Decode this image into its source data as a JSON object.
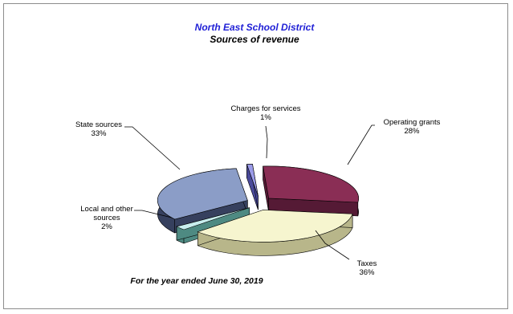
{
  "chart_data": {
    "type": "pie",
    "title": "North East School District",
    "subtitle": "Sources of revenue",
    "footnote": "For the year ended June 30, 2019",
    "title_color": "#1f1fd6",
    "slices": [
      {
        "label": "Charges for services",
        "value_label": "1%",
        "value": 1,
        "color_top": "#9b9be8",
        "color_side": "#4a4a9a"
      },
      {
        "label": "Operating grants",
        "value_label": "28%",
        "value": 28,
        "color_top": "#8a2e55",
        "color_side": "#551a35"
      },
      {
        "label": "Taxes",
        "value_label": "36%",
        "value": 36,
        "color_top": "#f6f5cf",
        "color_side": "#b8b68a"
      },
      {
        "label": "Local and other sources",
        "label_lines": [
          "Local and other",
          "sources"
        ],
        "value_label": "2%",
        "value": 2,
        "color_top": "#c8eeee",
        "color_side": "#4e8a82"
      },
      {
        "label": "State sources",
        "value_label": "33%",
        "value": 33,
        "color_top": "#8b9dc7",
        "color_side": "#36405e"
      }
    ],
    "exploded": true,
    "legend": "none"
  }
}
